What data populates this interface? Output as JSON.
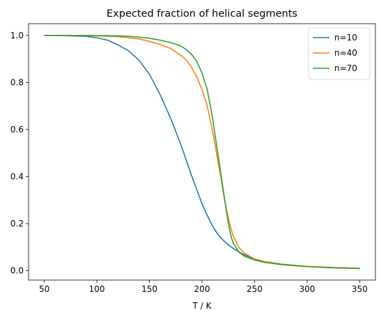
{
  "chart_data": {
    "type": "line",
    "title": "Expected fraction of helical segments",
    "xlabel": "T / K",
    "ylabel": "",
    "xlim": [
      35,
      365
    ],
    "ylim": [
      -0.04,
      1.05
    ],
    "xticks": [
      50,
      100,
      150,
      200,
      250,
      300,
      350
    ],
    "yticks": [
      0.0,
      0.2,
      0.4,
      0.6,
      0.8,
      1.0
    ],
    "grid": false,
    "legend_position": "top-right",
    "x": [
      50,
      70,
      90,
      100,
      110,
      120,
      130,
      140,
      150,
      160,
      170,
      180,
      185,
      190,
      195,
      200,
      205,
      210,
      215,
      218,
      220,
      222,
      224,
      226,
      228,
      230,
      235,
      240,
      250,
      260,
      275,
      300,
      325,
      350
    ],
    "series": [
      {
        "name": "n=10",
        "color": "#1f77b4",
        "values": [
          1.0,
          0.999,
          0.996,
          0.99,
          0.98,
          0.96,
          0.935,
          0.895,
          0.835,
          0.75,
          0.65,
          0.535,
          0.47,
          0.405,
          0.345,
          0.285,
          0.235,
          0.19,
          0.155,
          0.14,
          0.13,
          0.122,
          0.114,
          0.107,
          0.1,
          0.094,
          0.08,
          0.068,
          0.05,
          0.038,
          0.028,
          0.018,
          0.013,
          0.01
        ]
      },
      {
        "name": "n=40",
        "color": "#ff7f0e",
        "values": [
          1.0,
          1.0,
          0.999,
          0.998,
          0.997,
          0.995,
          0.99,
          0.985,
          0.975,
          0.962,
          0.945,
          0.915,
          0.895,
          0.865,
          0.825,
          0.77,
          0.7,
          0.595,
          0.47,
          0.395,
          0.34,
          0.29,
          0.245,
          0.205,
          0.172,
          0.145,
          0.1,
          0.075,
          0.05,
          0.038,
          0.028,
          0.018,
          0.013,
          0.01
        ]
      },
      {
        "name": "n=70",
        "color": "#2ca02c",
        "values": [
          1.0,
          1.0,
          1.0,
          0.999,
          0.999,
          0.998,
          0.996,
          0.993,
          0.988,
          0.98,
          0.97,
          0.955,
          0.94,
          0.92,
          0.89,
          0.84,
          0.77,
          0.65,
          0.5,
          0.41,
          0.35,
          0.29,
          0.23,
          0.18,
          0.14,
          0.115,
          0.08,
          0.062,
          0.045,
          0.035,
          0.026,
          0.017,
          0.012,
          0.009
        ]
      }
    ]
  }
}
